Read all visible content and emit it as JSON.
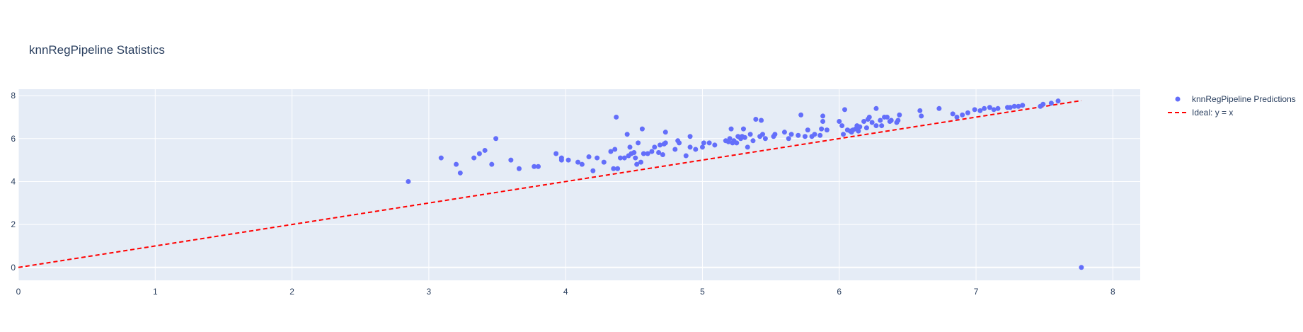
{
  "chart_data": {
    "type": "scatter",
    "title": "knnRegPipeline Statistics",
    "xlabel": "",
    "ylabel": "",
    "xlim": [
      0,
      8.2
    ],
    "ylim": [
      -0.6,
      8.3
    ],
    "xticks": [
      0,
      1,
      2,
      3,
      4,
      5,
      6,
      7,
      8
    ],
    "yticks": [
      0,
      2,
      4,
      6,
      8
    ],
    "grid": true,
    "legend_position": "top-right",
    "colors": {
      "plot_bg": "#E5ECF6",
      "points": "#636EFA",
      "ideal_line": "#FF0000",
      "grid": "#ffffff",
      "text": "#2a3f5f"
    },
    "series": [
      {
        "name": "knnRegPipeline Predictions",
        "mode": "markers",
        "points": [
          [
            2.85,
            4.0
          ],
          [
            3.09,
            5.1
          ],
          [
            3.2,
            4.8
          ],
          [
            3.23,
            4.4
          ],
          [
            3.33,
            5.1
          ],
          [
            3.37,
            5.3
          ],
          [
            3.41,
            5.45
          ],
          [
            3.46,
            4.8
          ],
          [
            3.49,
            6.0
          ],
          [
            3.6,
            5.0
          ],
          [
            3.66,
            4.6
          ],
          [
            3.77,
            4.7
          ],
          [
            3.8,
            4.7
          ],
          [
            3.93,
            5.3
          ],
          [
            3.97,
            5.0
          ],
          [
            3.97,
            5.1
          ],
          [
            4.02,
            5.0
          ],
          [
            4.09,
            4.9
          ],
          [
            4.12,
            4.8
          ],
          [
            4.17,
            5.15
          ],
          [
            4.2,
            4.5
          ],
          [
            4.23,
            5.1
          ],
          [
            4.28,
            4.9
          ],
          [
            4.33,
            5.4
          ],
          [
            4.35,
            4.6
          ],
          [
            4.36,
            5.5
          ],
          [
            4.37,
            7.0
          ],
          [
            4.38,
            4.6
          ],
          [
            4.4,
            5.1
          ],
          [
            4.43,
            5.1
          ],
          [
            4.45,
            6.2
          ],
          [
            4.46,
            5.2
          ],
          [
            4.47,
            5.6
          ],
          [
            4.48,
            5.3
          ],
          [
            4.5,
            5.35
          ],
          [
            4.51,
            5.1
          ],
          [
            4.52,
            4.8
          ],
          [
            4.53,
            5.8
          ],
          [
            4.55,
            4.9
          ],
          [
            4.56,
            6.45
          ],
          [
            4.57,
            5.3
          ],
          [
            4.6,
            5.3
          ],
          [
            4.63,
            5.4
          ],
          [
            4.65,
            5.6
          ],
          [
            4.68,
            5.35
          ],
          [
            4.69,
            5.7
          ],
          [
            4.71,
            5.25
          ],
          [
            4.72,
            5.75
          ],
          [
            4.73,
            5.8
          ],
          [
            4.73,
            6.3
          ],
          [
            4.8,
            5.5
          ],
          [
            4.82,
            5.9
          ],
          [
            4.83,
            5.8
          ],
          [
            4.88,
            5.2
          ],
          [
            4.91,
            6.1
          ],
          [
            4.91,
            5.6
          ],
          [
            4.95,
            5.5
          ],
          [
            5.0,
            5.6
          ],
          [
            5.01,
            5.8
          ],
          [
            5.05,
            5.8
          ],
          [
            5.09,
            5.7
          ],
          [
            5.17,
            5.9
          ],
          [
            5.19,
            5.85
          ],
          [
            5.2,
            6.0
          ],
          [
            5.21,
            6.45
          ],
          [
            5.22,
            5.8
          ],
          [
            5.23,
            5.9
          ],
          [
            5.25,
            5.8
          ],
          [
            5.26,
            6.1
          ],
          [
            5.28,
            6.0
          ],
          [
            5.29,
            6.1
          ],
          [
            5.3,
            6.45
          ],
          [
            5.31,
            6.05
          ],
          [
            5.33,
            5.6
          ],
          [
            5.35,
            6.2
          ],
          [
            5.37,
            5.9
          ],
          [
            5.39,
            6.9
          ],
          [
            5.42,
            6.1
          ],
          [
            5.43,
            6.85
          ],
          [
            5.44,
            6.2
          ],
          [
            5.46,
            6.0
          ],
          [
            5.52,
            6.1
          ],
          [
            5.53,
            6.2
          ],
          [
            5.6,
            6.3
          ],
          [
            5.63,
            6.0
          ],
          [
            5.65,
            6.2
          ],
          [
            5.7,
            6.15
          ],
          [
            5.72,
            7.1
          ],
          [
            5.75,
            6.1
          ],
          [
            5.77,
            6.4
          ],
          [
            5.8,
            6.1
          ],
          [
            5.82,
            6.2
          ],
          [
            5.86,
            6.15
          ],
          [
            5.87,
            6.45
          ],
          [
            5.88,
            6.8
          ],
          [
            5.88,
            7.05
          ],
          [
            5.91,
            6.4
          ],
          [
            6.0,
            6.8
          ],
          [
            6.02,
            6.6
          ],
          [
            6.03,
            6.2
          ],
          [
            6.04,
            7.35
          ],
          [
            6.06,
            6.4
          ],
          [
            6.08,
            6.35
          ],
          [
            6.09,
            6.3
          ],
          [
            6.1,
            6.4
          ],
          [
            6.12,
            6.45
          ],
          [
            6.13,
            6.6
          ],
          [
            6.14,
            6.35
          ],
          [
            6.15,
            6.55
          ],
          [
            6.18,
            6.8
          ],
          [
            6.2,
            6.5
          ],
          [
            6.21,
            6.9
          ],
          [
            6.22,
            7.0
          ],
          [
            6.24,
            6.75
          ],
          [
            6.27,
            6.6
          ],
          [
            6.27,
            7.4
          ],
          [
            6.3,
            6.85
          ],
          [
            6.31,
            6.6
          ],
          [
            6.33,
            7.0
          ],
          [
            6.35,
            7.0
          ],
          [
            6.37,
            6.8
          ],
          [
            6.38,
            6.85
          ],
          [
            6.42,
            6.75
          ],
          [
            6.43,
            6.85
          ],
          [
            6.44,
            7.1
          ],
          [
            6.59,
            7.3
          ],
          [
            6.6,
            7.05
          ],
          [
            6.73,
            7.4
          ],
          [
            6.83,
            7.15
          ],
          [
            6.86,
            7.0
          ],
          [
            6.9,
            7.1
          ],
          [
            6.94,
            7.2
          ],
          [
            6.99,
            7.35
          ],
          [
            7.03,
            7.3
          ],
          [
            7.06,
            7.4
          ],
          [
            7.1,
            7.45
          ],
          [
            7.13,
            7.35
          ],
          [
            7.16,
            7.4
          ],
          [
            7.23,
            7.45
          ],
          [
            7.25,
            7.45
          ],
          [
            7.28,
            7.5
          ],
          [
            7.31,
            7.5
          ],
          [
            7.34,
            7.55
          ],
          [
            7.47,
            7.5
          ],
          [
            7.49,
            7.6
          ],
          [
            7.55,
            7.65
          ],
          [
            7.6,
            7.75
          ],
          [
            7.77,
            0.0
          ]
        ]
      },
      {
        "name": "Ideal: y = x",
        "mode": "lines",
        "dash": "dash",
        "points": [
          [
            0,
            0
          ],
          [
            7.77,
            7.77
          ]
        ]
      }
    ]
  }
}
